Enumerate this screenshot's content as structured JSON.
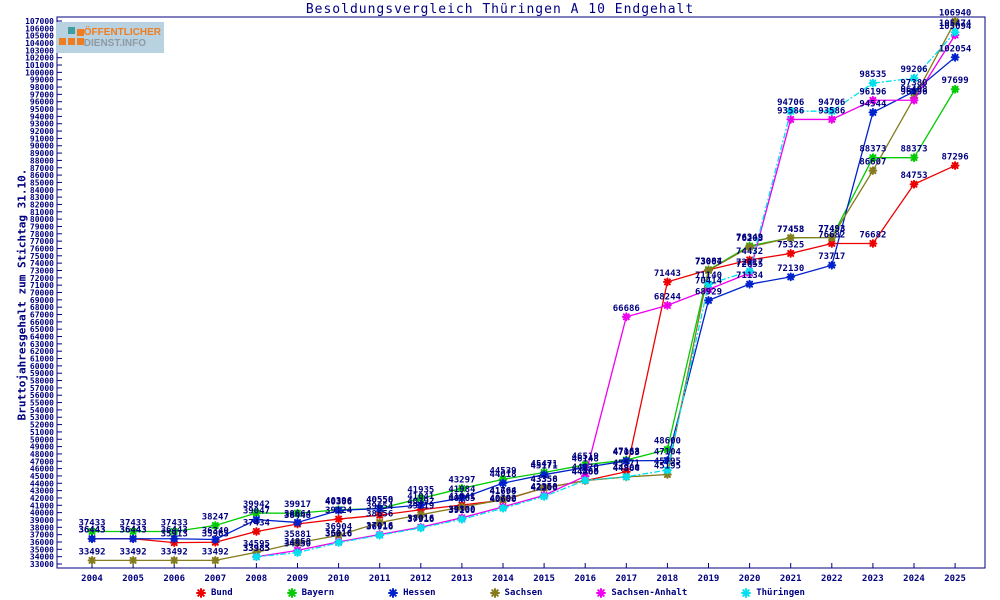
{
  "logo": {
    "line1": "ÖFFENTLICHER",
    "line2": "DIENST.INFO"
  },
  "colors": {
    "axis": "#000080",
    "label_text": "#000080",
    "background": "#ffffff",
    "logo_bg": "#b9d2e2",
    "logo_orange": "#ef7d1f",
    "logo_gray": "#8f9aa3",
    "logo_teal": "#3f9d9d"
  },
  "chart_data": {
    "type": "line",
    "title": "Besoldungsvergleich Thüringen A 10 Endgehalt",
    "ylabel": "Bruttojahresgehalt zum Stichtag 31.10.",
    "xlabel": "",
    "x": [
      2004,
      2005,
      2006,
      2007,
      2008,
      2009,
      2010,
      2011,
      2012,
      2013,
      2014,
      2015,
      2016,
      2017,
      2018,
      2019,
      2020,
      2021,
      2022,
      2023,
      2024,
      2025
    ],
    "ylim": [
      33000,
      107000
    ],
    "ytick_step": 1000,
    "grid": false,
    "legend_position": "bottom",
    "point_labels": true,
    "series": [
      {
        "name": "Bund",
        "color": "#ee0000",
        "values": [
          36443,
          36443,
          35913,
          35963,
          37434,
          38448,
          39124,
          39654,
          40392,
          41041,
          41698,
          43358,
          44360,
          45571,
          71443,
          73084,
          74432,
          75325,
          76682,
          76682,
          84753,
          87296
        ]
      },
      {
        "name": "Bayern",
        "color": "#00cc00",
        "values": [
          37433,
          37433,
          37433,
          38247,
          39942,
          39917,
          40396,
          40558,
          41935,
          43297,
          44539,
          45471,
          46519,
          47168,
          48600,
          73084,
          76349,
          77453,
          77493,
          88373,
          88373,
          97699
        ]
      },
      {
        "name": "Hessen",
        "color": "#0022cc",
        "values": [
          36443,
          36443,
          36443,
          36340,
          39047,
          38664,
          40306,
          40550,
          41041,
          41984,
          44018,
          45171,
          46148,
          47063,
          47104,
          68929,
          71134,
          72130,
          73717,
          94544,
          97380,
          102054
        ]
      },
      {
        "name": "Sachsen",
        "color": "#857c1e",
        "values": [
          33492,
          33492,
          33492,
          33492,
          34595,
          35881,
          36904,
          38656,
          39719,
          40765,
          41764,
          43356,
          44366,
          44864,
          45195,
          73007,
          76203,
          77458,
          77493,
          86607,
          96498,
          106940
        ]
      },
      {
        "name": "Sachsen-Anhalt",
        "color": "#ee00ee",
        "values": [
          null,
          null,
          null,
          null,
          33985,
          34858,
          36016,
          37016,
          38016,
          39300,
          40792,
          42358,
          44970,
          66686,
          68244,
          70414,
          72655,
          93586,
          93586,
          96196,
          96196,
          105094
        ]
      },
      {
        "name": "Thüringen",
        "color": "#00e0ee",
        "dash": true,
        "values": [
          null,
          null,
          null,
          null,
          33985,
          34550,
          35916,
          36916,
          37916,
          39100,
          40600,
          42200,
          44400,
          44900,
          45795,
          71140,
          72917,
          94706,
          94706,
          98535,
          99206,
          105474
        ]
      }
    ]
  }
}
